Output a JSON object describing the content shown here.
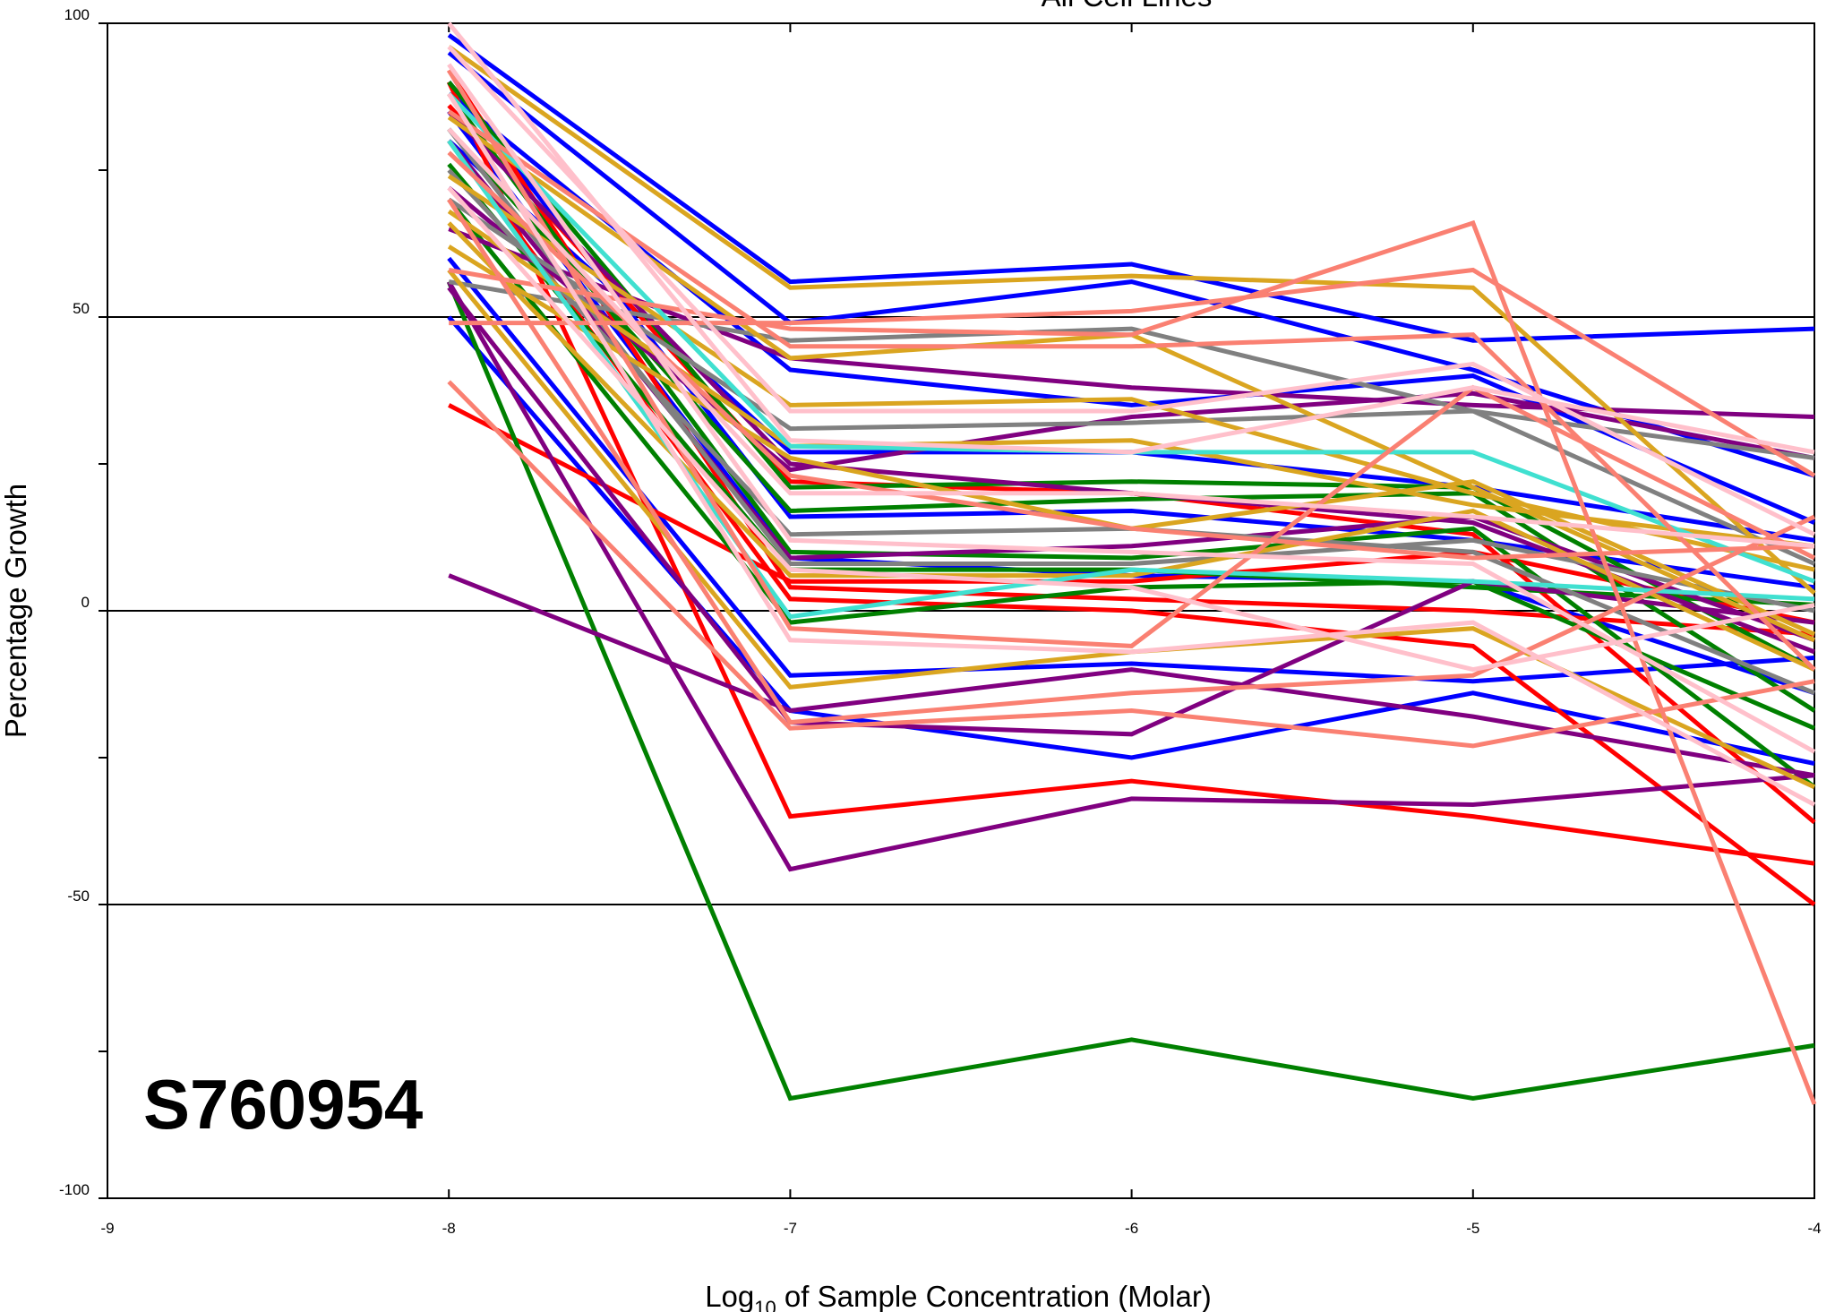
{
  "chart_data": {
    "type": "line",
    "title": "All Cell Lines",
    "sample_id": "S760954",
    "xlabel_prefix": "Log",
    "xlabel_subscript": "10",
    "xlabel_suffix": " of Sample Concentration (Molar)",
    "ylabel": "Percentage Growth",
    "xlim": [
      -9,
      -4
    ],
    "ylim": [
      -100,
      100
    ],
    "x_ticks": [
      "-9",
      "-8",
      "-7",
      "-6",
      "-5",
      "-4"
    ],
    "y_ticks": [
      "100",
      "50",
      "0",
      "-50",
      "-100"
    ],
    "reference_lines": [
      50,
      0,
      -50
    ],
    "x": [
      -8,
      -7,
      -6,
      -5,
      -4
    ],
    "series": [
      {
        "color": "#0000FF",
        "values": [
          98,
          56,
          59,
          46,
          48
        ]
      },
      {
        "color": "#0000FF",
        "values": [
          95,
          49,
          56,
          41,
          23
        ]
      },
      {
        "color": "#0000FF",
        "values": [
          88,
          41,
          35,
          40,
          15
        ]
      },
      {
        "color": "#0000FF",
        "values": [
          80,
          27,
          27,
          21,
          12
        ]
      },
      {
        "color": "#0000FF",
        "values": [
          90,
          16,
          17,
          12,
          4
        ]
      },
      {
        "color": "#0000FF",
        "values": [
          85,
          9,
          6,
          5,
          -14
        ]
      },
      {
        "color": "#0000FF",
        "values": [
          60,
          -11,
          -9,
          -12,
          -8
        ]
      },
      {
        "color": "#0000FF",
        "values": [
          50,
          -17,
          -25,
          -14,
          -26
        ]
      },
      {
        "color": "#FF0000",
        "values": [
          92,
          4,
          2,
          0,
          -4
        ]
      },
      {
        "color": "#FF0000",
        "values": [
          90,
          -35,
          -29,
          -35,
          -43
        ]
      },
      {
        "color": "#FF0000",
        "values": [
          35,
          5,
          5,
          10,
          -2
        ]
      },
      {
        "color": "#FF0000",
        "values": [
          80,
          2,
          0,
          -6,
          -50
        ]
      },
      {
        "color": "#FF0000",
        "values": [
          86,
          22,
          20,
          13,
          -36
        ]
      },
      {
        "color": "#008000",
        "values": [
          56,
          -83,
          -73,
          -83,
          -74
        ]
      },
      {
        "color": "#008000",
        "values": [
          90,
          21,
          22,
          21,
          -10
        ]
      },
      {
        "color": "#008000",
        "values": [
          82,
          17,
          19,
          20,
          -17
        ]
      },
      {
        "color": "#008000",
        "values": [
          76,
          7,
          7,
          4,
          1
        ]
      },
      {
        "color": "#008000",
        "values": [
          88,
          10,
          9,
          14,
          -30
        ]
      },
      {
        "color": "#008000",
        "values": [
          70,
          -2,
          4,
          5,
          -20
        ]
      },
      {
        "color": "#800080",
        "values": [
          6,
          -17,
          -10,
          -18,
          -28
        ]
      },
      {
        "color": "#800080",
        "values": [
          56,
          -44,
          -32,
          -33,
          -28
        ]
      },
      {
        "color": "#800080",
        "values": [
          85,
          25,
          20,
          15,
          -7
        ]
      },
      {
        "color": "#800080",
        "values": [
          65,
          43,
          38,
          35,
          33
        ]
      },
      {
        "color": "#800080",
        "values": [
          55,
          -19,
          -21,
          5,
          -2
        ]
      },
      {
        "color": "#800080",
        "values": [
          80,
          9,
          11,
          16,
          -5
        ]
      },
      {
        "color": "#800080",
        "values": [
          72,
          24,
          33,
          37,
          26
        ]
      },
      {
        "color": "#808080",
        "values": [
          56,
          46,
          48,
          34,
          26
        ]
      },
      {
        "color": "#808080",
        "values": [
          70,
          31,
          32,
          34,
          8
        ]
      },
      {
        "color": "#808080",
        "values": [
          75,
          13,
          14,
          10,
          -14
        ]
      },
      {
        "color": "#808080",
        "values": [
          82,
          8,
          8,
          12,
          0
        ]
      },
      {
        "color": "#DAA520",
        "values": [
          96,
          55,
          57,
          55,
          3
        ]
      },
      {
        "color": "#DAA520",
        "values": [
          84,
          43,
          47,
          21,
          -5
        ]
      },
      {
        "color": "#DAA520",
        "values": [
          74,
          35,
          36,
          20,
          7
        ]
      },
      {
        "color": "#DAA520",
        "values": [
          68,
          28,
          29,
          18,
          11
        ]
      },
      {
        "color": "#DAA520",
        "values": [
          62,
          26,
          14,
          22,
          -4
        ]
      },
      {
        "color": "#DAA520",
        "values": [
          58,
          -13,
          -7,
          -3,
          -30
        ]
      },
      {
        "color": "#DAA520",
        "values": [
          66,
          6,
          6,
          17,
          -10
        ]
      },
      {
        "color": "#40E0D0",
        "values": [
          88,
          28,
          27,
          27,
          5
        ]
      },
      {
        "color": "#40E0D0",
        "values": [
          80,
          -1,
          7,
          5,
          2
        ]
      },
      {
        "color": "#FA8072",
        "values": [
          49,
          49,
          51,
          58,
          23
        ]
      },
      {
        "color": "#FA8072",
        "values": [
          58,
          48,
          47,
          66,
          -84
        ]
      },
      {
        "color": "#FA8072",
        "values": [
          39,
          -20,
          -17,
          -23,
          -12
        ]
      },
      {
        "color": "#FA8072",
        "values": [
          85,
          45,
          45,
          47,
          -10
        ]
      },
      {
        "color": "#FA8072",
        "values": [
          78,
          23,
          14,
          9,
          11
        ]
      },
      {
        "color": "#FA8072",
        "values": [
          92,
          -3,
          -6,
          38,
          9
        ]
      },
      {
        "color": "#FA8072",
        "values": [
          70,
          -19,
          -14,
          -11,
          16
        ]
      },
      {
        "color": "#FFC0CB",
        "values": [
          100,
          29,
          27,
          38,
          27
        ]
      },
      {
        "color": "#FFC0CB",
        "values": [
          96,
          34,
          34,
          42,
          13
        ]
      },
      {
        "color": "#FFC0CB",
        "values": [
          93,
          12,
          10,
          8,
          -24
        ]
      },
      {
        "color": "#FFC0CB",
        "values": [
          88,
          -5,
          -7,
          -2,
          -33
        ]
      },
      {
        "color": "#FFC0CB",
        "values": [
          72,
          7,
          4,
          -10,
          1
        ]
      },
      {
        "color": "#FFC0CB",
        "values": [
          82,
          20,
          20,
          16,
          11
        ]
      }
    ]
  }
}
